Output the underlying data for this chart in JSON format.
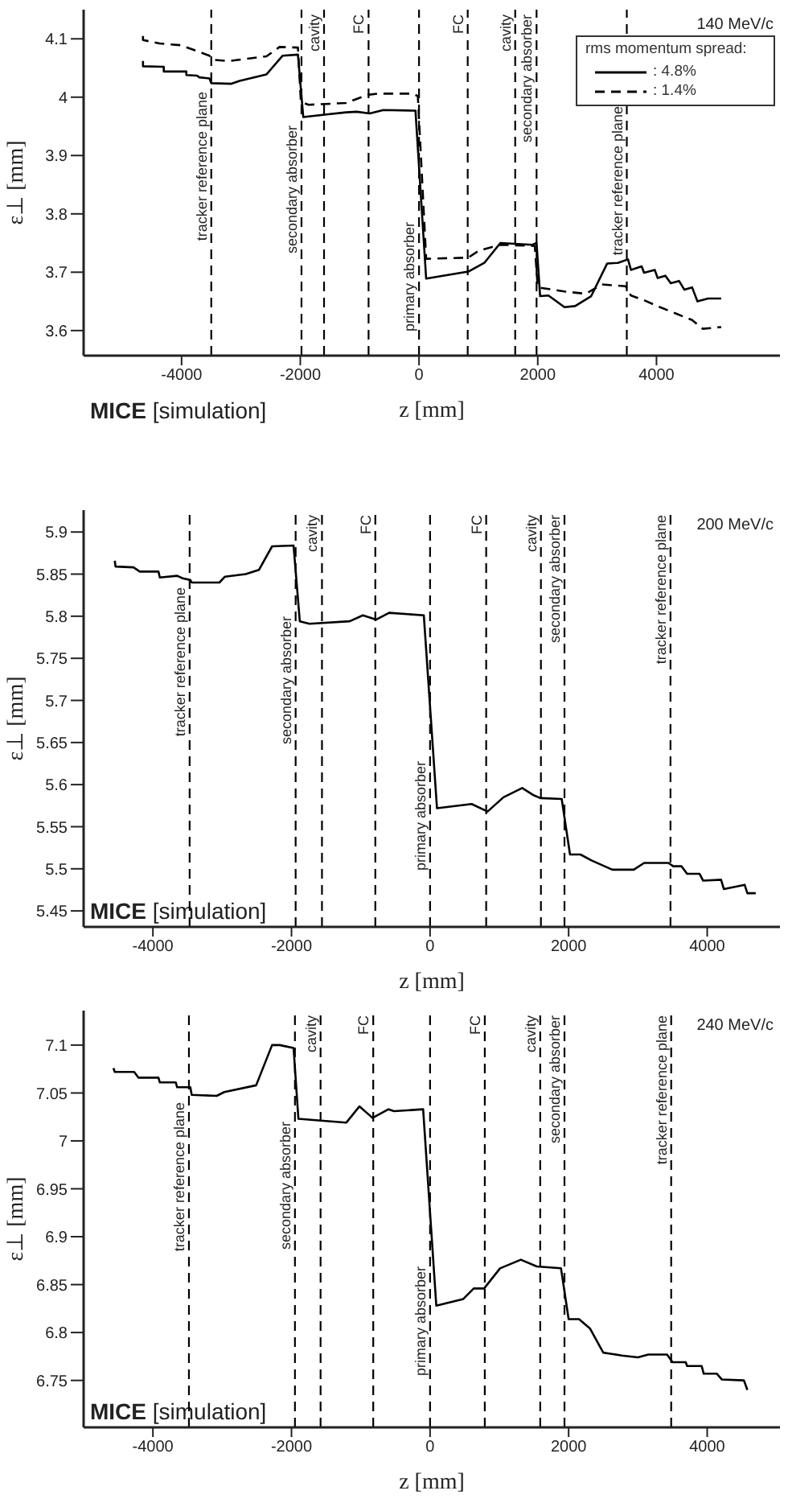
{
  "chart_data": [
    {
      "type": "line",
      "xlabel": "z [mm]",
      "ylabel": "ε⊥ [mm]",
      "xlim": [
        -5650,
        6080
      ],
      "ylim": [
        3.557,
        4.15
      ],
      "xticks": [
        -4000,
        -2000,
        0,
        2000,
        4000
      ],
      "yticks": [
        3.6,
        3.7,
        3.8,
        3.9,
        4,
        4.1
      ],
      "grid": false,
      "legend": "top right",
      "legend_title": "rms momentum spread:",
      "marker": "none",
      "annotations": [
        "140 MeV/c",
        "MICE [simulation]"
      ],
      "ref_lines": [
        {
          "axis": "x",
          "value": -3500,
          "label": "tracker reference plane",
          "color": "#000000",
          "line_style": "dashed"
        },
        {
          "axis": "x",
          "value": -1980,
          "label": "secondary absorber",
          "color": "#000000",
          "line_style": "dashed"
        },
        {
          "axis": "x",
          "value": -1600,
          "label": "cavity",
          "color": "#000000",
          "line_style": "dashed"
        },
        {
          "axis": "x",
          "value": -850,
          "label": "FC",
          "color": "#000000",
          "line_style": "dashed"
        },
        {
          "axis": "x",
          "value": 0,
          "label": "primary absorber",
          "color": "#000000",
          "line_style": "dashed"
        },
        {
          "axis": "x",
          "value": 820,
          "label": "FC",
          "color": "#000000",
          "line_style": "dashed"
        },
        {
          "axis": "x",
          "value": 1620,
          "label": "cavity",
          "color": "#000000",
          "line_style": "dashed"
        },
        {
          "axis": "x",
          "value": 1980,
          "label": "secondary absorber",
          "color": "#000000",
          "line_style": "dashed"
        },
        {
          "axis": "x",
          "value": 3500,
          "label": "tracker reference plane",
          "color": "#000000",
          "line_style": "dashed"
        }
      ],
      "series": [
        {
          "name": ": 4.8%",
          "color": "#000000",
          "line_style": "solid",
          "x": [
            -4650,
            -4650,
            -4300,
            -4300,
            -3920,
            -3920,
            -3740,
            -3700,
            -3530,
            -3500,
            -3160,
            -3020,
            -2570,
            -2300,
            -2040,
            -1950,
            -1590,
            -1230,
            -1050,
            -830,
            -600,
            -110,
            -60,
            120,
            830,
            1100,
            1370,
            1910,
            1980,
            2040,
            2180,
            2450,
            2630,
            2900,
            3170,
            3350,
            3520,
            3570,
            3750,
            3790,
            3970,
            4020,
            4150,
            4240,
            4380,
            4470,
            4600,
            4690,
            4870,
            5090
          ],
          "values": [
            4.062,
            4.053,
            4.052,
            4.044,
            4.044,
            4.038,
            4.037,
            4.034,
            4.032,
            4.024,
            4.023,
            4.028,
            4.039,
            4.071,
            4.073,
            3.966,
            3.97,
            3.974,
            3.975,
            3.972,
            3.978,
            3.977,
            3.977,
            3.689,
            3.701,
            3.716,
            3.75,
            3.747,
            3.75,
            3.659,
            3.66,
            3.64,
            3.642,
            3.659,
            3.715,
            3.716,
            3.722,
            3.704,
            3.71,
            3.699,
            3.704,
            3.69,
            3.694,
            3.681,
            3.685,
            3.67,
            3.674,
            3.65,
            3.655,
            3.655
          ]
        },
        {
          "name": ": 1.4%",
          "color": "#000000",
          "line_style": "dashed",
          "x": [
            -4650,
            -4650,
            -4370,
            -4010,
            -3740,
            -3530,
            -3470,
            -3200,
            -2570,
            -2350,
            -2040,
            -1990,
            -1860,
            -1230,
            -870,
            -690,
            -110,
            -20,
            120,
            830,
            1010,
            1370,
            1950,
            2000,
            2450,
            2810,
            3080,
            3480,
            3570,
            3790,
            4060,
            4330,
            4600,
            4780,
            5090
          ],
          "values": [
            4.105,
            4.098,
            4.092,
            4.089,
            4.079,
            4.071,
            4.064,
            4.062,
            4.07,
            4.086,
            4.085,
            3.992,
            3.987,
            3.99,
            4.004,
            4.006,
            4.006,
            4.002,
            3.723,
            3.725,
            3.737,
            3.747,
            3.745,
            3.674,
            3.667,
            3.663,
            3.679,
            3.676,
            3.66,
            3.652,
            3.64,
            3.629,
            3.618,
            3.603,
            3.606
          ]
        }
      ]
    },
    {
      "type": "line",
      "xlabel": "z [mm]",
      "ylabel": "ε⊥ [mm]",
      "xlim": [
        -5000,
        5050
      ],
      "ylim": [
        5.431,
        5.926
      ],
      "xticks": [
        -4000,
        -2000,
        0,
        2000,
        4000
      ],
      "yticks": [
        5.45,
        5.5,
        5.55,
        5.6,
        5.65,
        5.7,
        5.75,
        5.8,
        5.85,
        5.9
      ],
      "grid": false,
      "marker": "none",
      "annotations": [
        "200 MeV/c",
        "MICE [simulation]"
      ],
      "ref_lines": [
        {
          "axis": "x",
          "value": -3470,
          "label": "tracker reference plane",
          "color": "#000000",
          "line_style": "dashed"
        },
        {
          "axis": "x",
          "value": -1940,
          "label": "secondary absorber",
          "color": "#000000",
          "line_style": "dashed"
        },
        {
          "axis": "x",
          "value": -1560,
          "label": "cavity",
          "color": "#000000",
          "line_style": "dashed"
        },
        {
          "axis": "x",
          "value": -790,
          "label": "FC",
          "color": "#000000",
          "line_style": "dashed"
        },
        {
          "axis": "x",
          "value": 0,
          "label": "primary absorber",
          "color": "#000000",
          "line_style": "dashed"
        },
        {
          "axis": "x",
          "value": 810,
          "label": "FC",
          "color": "#000000",
          "line_style": "dashed"
        },
        {
          "axis": "x",
          "value": 1600,
          "label": "cavity",
          "color": "#000000",
          "line_style": "dashed"
        },
        {
          "axis": "x",
          "value": 1940,
          "label": "secondary absorber",
          "color": "#000000",
          "line_style": "dashed"
        },
        {
          "axis": "x",
          "value": 3470,
          "label": "tracker reference plane",
          "color": "#000000",
          "line_style": "dashed"
        }
      ],
      "series": [
        {
          "color": "#000000",
          "line_style": "solid",
          "x": [
            -4550,
            -4540,
            -4280,
            -4190,
            -3920,
            -3900,
            -3650,
            -3570,
            -3460,
            -3440,
            -3040,
            -2960,
            -2660,
            -2470,
            -2280,
            -1970,
            -1880,
            -1740,
            -1160,
            -970,
            -780,
            -590,
            -90,
            100,
            600,
            830,
            1060,
            1330,
            1480,
            1590,
            1900,
            2020,
            2170,
            2330,
            2630,
            2940,
            3090,
            3440,
            3510,
            3630,
            3710,
            3890,
            3940,
            4200,
            4240,
            4540,
            4580,
            4700
          ],
          "values": [
            5.866,
            5.859,
            5.858,
            5.853,
            5.853,
            5.846,
            5.848,
            5.845,
            5.843,
            5.84,
            5.84,
            5.847,
            5.85,
            5.855,
            5.883,
            5.884,
            5.794,
            5.791,
            5.794,
            5.801,
            5.796,
            5.804,
            5.801,
            5.572,
            5.577,
            5.568,
            5.585,
            5.596,
            5.588,
            5.584,
            5.583,
            5.517,
            5.517,
            5.51,
            5.499,
            5.499,
            5.507,
            5.507,
            5.503,
            5.503,
            5.494,
            5.494,
            5.486,
            5.487,
            5.476,
            5.481,
            5.471,
            5.471
          ]
        }
      ]
    },
    {
      "type": "line",
      "xlabel": "z [mm]",
      "ylabel": "ε⊥ [mm]",
      "xlim": [
        -5000,
        5050
      ],
      "ylim": [
        6.701,
        7.136
      ],
      "xticks": [
        -4000,
        -2000,
        0,
        2000,
        4000
      ],
      "yticks": [
        6.75,
        6.8,
        6.85,
        6.9,
        6.95,
        7,
        7.05,
        7.1
      ],
      "grid": false,
      "marker": "none",
      "annotations": [
        "240 MeV/c",
        "MICE [simulation]"
      ],
      "ref_lines": [
        {
          "axis": "x",
          "value": -3480,
          "label": "tracker reference plane",
          "color": "#000000",
          "line_style": "dashed"
        },
        {
          "axis": "x",
          "value": -1950,
          "label": "secondary absorber",
          "color": "#000000",
          "line_style": "dashed"
        },
        {
          "axis": "x",
          "value": -1580,
          "label": "cavity",
          "color": "#000000",
          "line_style": "dashed"
        },
        {
          "axis": "x",
          "value": -820,
          "label": "FC",
          "color": "#000000",
          "line_style": "dashed"
        },
        {
          "axis": "x",
          "value": 0,
          "label": "primary absorber",
          "color": "#000000",
          "line_style": "dashed"
        },
        {
          "axis": "x",
          "value": 790,
          "label": "FC",
          "color": "#000000",
          "line_style": "dashed"
        },
        {
          "axis": "x",
          "value": 1590,
          "label": "cavity",
          "color": "#000000",
          "line_style": "dashed"
        },
        {
          "axis": "x",
          "value": 1940,
          "label": "secondary absorber",
          "color": "#000000",
          "line_style": "dashed"
        },
        {
          "axis": "x",
          "value": 3480,
          "label": "tracker reference plane",
          "color": "#000000",
          "line_style": "dashed"
        }
      ],
      "series": [
        {
          "color": "#000000",
          "line_style": "solid",
          "x": [
            -4570,
            -4550,
            -4270,
            -4210,
            -3920,
            -3900,
            -3670,
            -3650,
            -3460,
            -3440,
            -3080,
            -2970,
            -2510,
            -2280,
            -2170,
            -1970,
            -1900,
            -1210,
            -1020,
            -830,
            -600,
            -520,
            -100,
            90,
            480,
            630,
            780,
            1010,
            1310,
            1540,
            1890,
            2000,
            2150,
            2310,
            2500,
            2770,
            3000,
            3150,
            3420,
            3500,
            3690,
            3710,
            3920,
            3950,
            4140,
            4210,
            4530,
            4580
          ],
          "values": [
            7.076,
            7.072,
            7.072,
            7.066,
            7.066,
            7.061,
            7.061,
            7.056,
            7.056,
            7.048,
            7.047,
            7.051,
            7.058,
            7.1,
            7.1,
            7.097,
            7.023,
            7.019,
            7.036,
            7.024,
            7.033,
            7.031,
            7.033,
            6.828,
            6.835,
            6.846,
            6.846,
            6.867,
            6.876,
            6.869,
            6.867,
            6.814,
            6.814,
            6.804,
            6.779,
            6.776,
            6.774,
            6.777,
            6.777,
            6.769,
            6.769,
            6.765,
            6.765,
            6.757,
            6.757,
            6.751,
            6.75,
            6.74
          ]
        }
      ]
    }
  ]
}
